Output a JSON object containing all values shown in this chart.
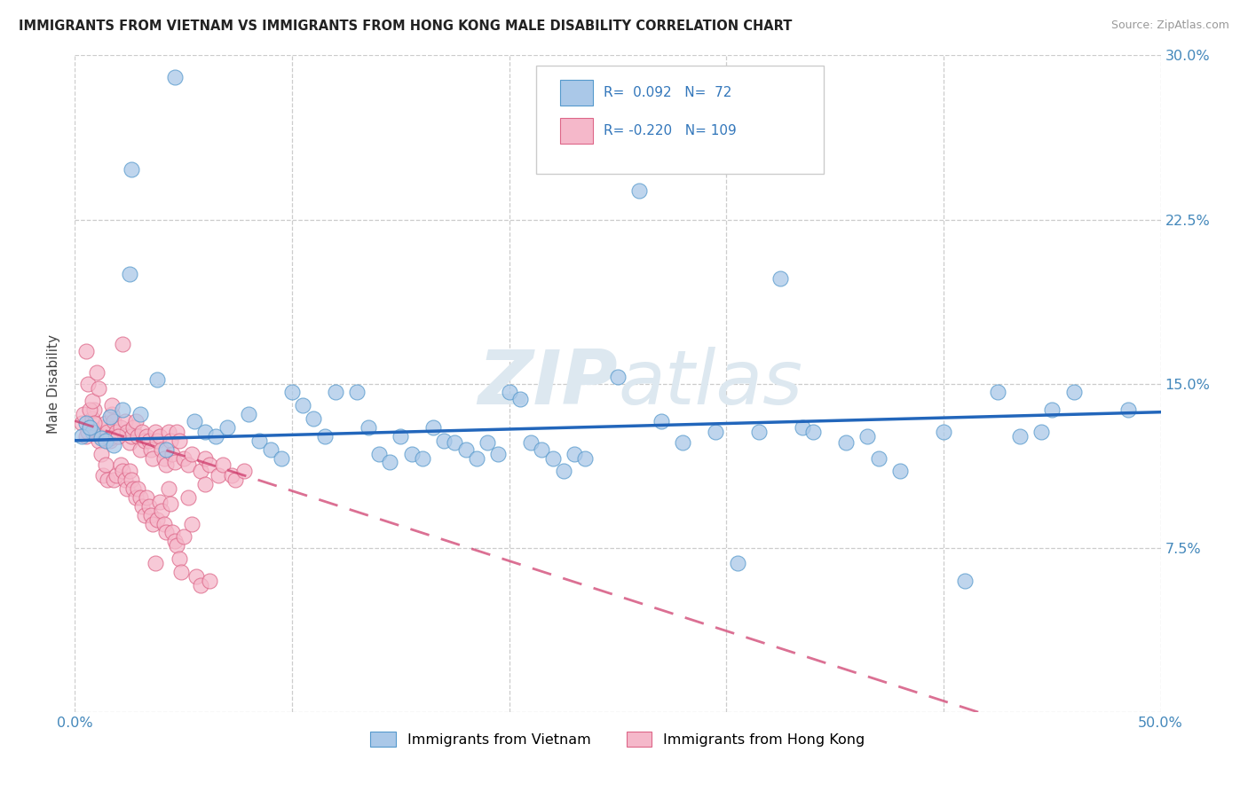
{
  "title": "IMMIGRANTS FROM VIETNAM VS IMMIGRANTS FROM HONG KONG MALE DISABILITY CORRELATION CHART",
  "source": "Source: ZipAtlas.com",
  "ylabel": "Male Disability",
  "x_min": 0.0,
  "x_max": 0.5,
  "y_min": 0.0,
  "y_max": 0.3,
  "x_ticks": [
    0.0,
    0.1,
    0.2,
    0.3,
    0.4,
    0.5
  ],
  "x_tick_labels_show": [
    "0.0%",
    "",
    "",
    "",
    "",
    "50.0%"
  ],
  "y_ticks": [
    0.0,
    0.075,
    0.15,
    0.225,
    0.3
  ],
  "y_tick_labels": [
    "",
    "7.5%",
    "15.0%",
    "22.5%",
    "30.0%"
  ],
  "vietnam_R": 0.092,
  "vietnam_N": 72,
  "hongkong_R": -0.22,
  "hongkong_N": 109,
  "vietnam_color": "#aac8e8",
  "vietnam_edge_color": "#5599cc",
  "vietnam_line_color": "#2266bb",
  "hongkong_color": "#f5b8ca",
  "hongkong_edge_color": "#dd6688",
  "hongkong_line_color": "#cc3366",
  "watermark_color": "#dde8f0",
  "legend_vietnam_label": "Immigrants from Vietnam",
  "legend_hongkong_label": "Immigrants from Hong Kong",
  "vietnam_x": [
    0.046,
    0.016,
    0.025,
    0.005,
    0.008,
    0.012,
    0.003,
    0.007,
    0.014,
    0.018,
    0.022,
    0.03,
    0.026,
    0.038,
    0.042,
    0.055,
    0.06,
    0.065,
    0.07,
    0.08,
    0.085,
    0.09,
    0.095,
    0.1,
    0.105,
    0.11,
    0.115,
    0.12,
    0.13,
    0.135,
    0.14,
    0.145,
    0.15,
    0.155,
    0.16,
    0.165,
    0.17,
    0.175,
    0.18,
    0.185,
    0.19,
    0.195,
    0.2,
    0.205,
    0.21,
    0.215,
    0.22,
    0.225,
    0.23,
    0.235,
    0.25,
    0.26,
    0.27,
    0.28,
    0.295,
    0.305,
    0.315,
    0.325,
    0.335,
    0.34,
    0.355,
    0.365,
    0.37,
    0.38,
    0.4,
    0.41,
    0.425,
    0.435,
    0.445,
    0.45,
    0.46,
    0.485
  ],
  "vietnam_y": [
    0.29,
    0.135,
    0.2,
    0.132,
    0.128,
    0.125,
    0.126,
    0.13,
    0.124,
    0.122,
    0.138,
    0.136,
    0.248,
    0.152,
    0.12,
    0.133,
    0.128,
    0.126,
    0.13,
    0.136,
    0.124,
    0.12,
    0.116,
    0.146,
    0.14,
    0.134,
    0.126,
    0.146,
    0.146,
    0.13,
    0.118,
    0.114,
    0.126,
    0.118,
    0.116,
    0.13,
    0.124,
    0.123,
    0.12,
    0.116,
    0.123,
    0.118,
    0.146,
    0.143,
    0.123,
    0.12,
    0.116,
    0.11,
    0.118,
    0.116,
    0.153,
    0.238,
    0.133,
    0.123,
    0.128,
    0.068,
    0.128,
    0.198,
    0.13,
    0.128,
    0.123,
    0.126,
    0.116,
    0.11,
    0.128,
    0.06,
    0.146,
    0.126,
    0.128,
    0.138,
    0.146,
    0.138
  ],
  "hongkong_x": [
    0.003,
    0.004,
    0.005,
    0.006,
    0.007,
    0.008,
    0.009,
    0.01,
    0.011,
    0.012,
    0.013,
    0.014,
    0.015,
    0.016,
    0.017,
    0.018,
    0.019,
    0.02,
    0.021,
    0.022,
    0.023,
    0.024,
    0.025,
    0.026,
    0.027,
    0.028,
    0.029,
    0.03,
    0.031,
    0.032,
    0.033,
    0.034,
    0.035,
    0.036,
    0.037,
    0.038,
    0.039,
    0.04,
    0.041,
    0.042,
    0.043,
    0.044,
    0.045,
    0.046,
    0.047,
    0.048,
    0.005,
    0.05,
    0.052,
    0.054,
    0.006,
    0.058,
    0.06,
    0.062,
    0.007,
    0.066,
    0.068,
    0.008,
    0.072,
    0.074,
    0.009,
    0.078,
    0.01,
    0.011,
    0.012,
    0.013,
    0.014,
    0.015,
    0.016,
    0.017,
    0.018,
    0.019,
    0.02,
    0.021,
    0.022,
    0.023,
    0.024,
    0.025,
    0.026,
    0.027,
    0.028,
    0.029,
    0.03,
    0.031,
    0.032,
    0.033,
    0.034,
    0.035,
    0.036,
    0.037,
    0.038,
    0.039,
    0.04,
    0.041,
    0.042,
    0.043,
    0.044,
    0.045,
    0.046,
    0.047,
    0.048,
    0.049,
    0.05,
    0.052,
    0.054,
    0.056,
    0.058,
    0.06,
    0.062
  ],
  "hongkong_y": [
    0.132,
    0.136,
    0.126,
    0.128,
    0.13,
    0.134,
    0.138,
    0.128,
    0.124,
    0.126,
    0.13,
    0.132,
    0.128,
    0.124,
    0.136,
    0.133,
    0.128,
    0.126,
    0.13,
    0.168,
    0.133,
    0.128,
    0.123,
    0.126,
    0.13,
    0.133,
    0.126,
    0.12,
    0.128,
    0.124,
    0.126,
    0.124,
    0.12,
    0.116,
    0.128,
    0.124,
    0.126,
    0.12,
    0.116,
    0.113,
    0.128,
    0.124,
    0.118,
    0.114,
    0.128,
    0.124,
    0.165,
    0.116,
    0.113,
    0.118,
    0.15,
    0.11,
    0.116,
    0.113,
    0.138,
    0.108,
    0.113,
    0.142,
    0.108,
    0.106,
    0.132,
    0.11,
    0.155,
    0.148,
    0.118,
    0.108,
    0.113,
    0.106,
    0.125,
    0.14,
    0.106,
    0.108,
    0.126,
    0.113,
    0.11,
    0.106,
    0.102,
    0.11,
    0.106,
    0.102,
    0.098,
    0.102,
    0.098,
    0.094,
    0.09,
    0.098,
    0.094,
    0.09,
    0.086,
    0.068,
    0.088,
    0.096,
    0.092,
    0.086,
    0.082,
    0.102,
    0.095,
    0.082,
    0.078,
    0.076,
    0.07,
    0.064,
    0.08,
    0.098,
    0.086,
    0.062,
    0.058,
    0.104,
    0.06
  ]
}
